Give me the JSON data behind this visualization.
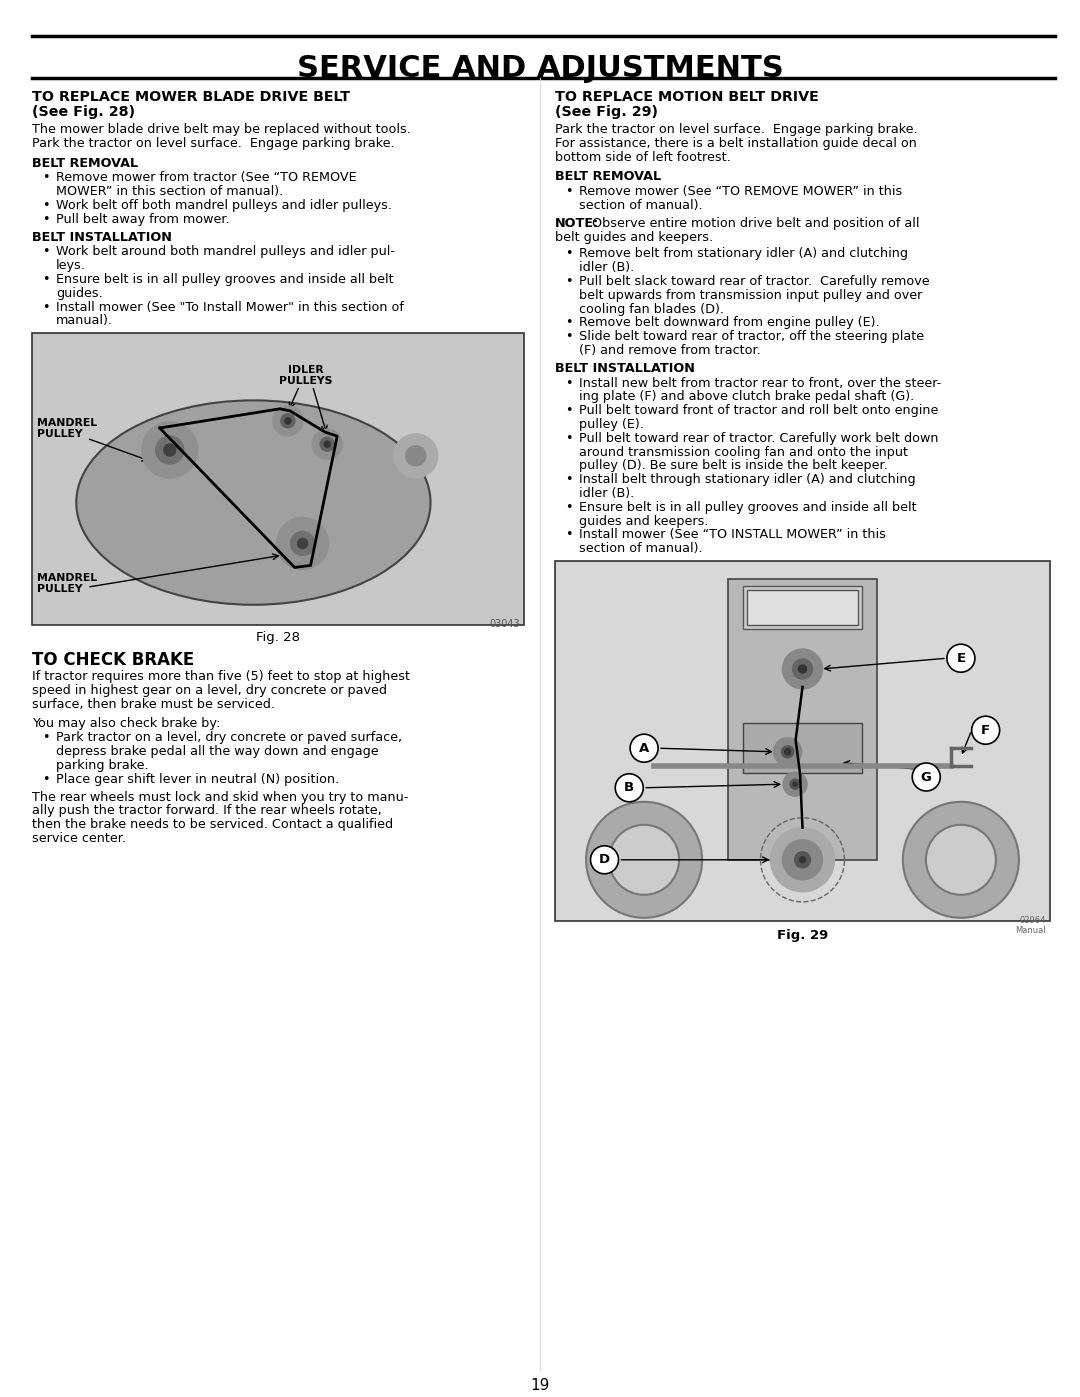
{
  "title": "SERVICE AND ADJUSTMENTS",
  "page_number": "19",
  "left_col": {
    "s1_title1": "TO REPLACE MOWER BLADE DRIVE BELT",
    "s1_title2": "(See Fig. 28)",
    "s1_intro": [
      "The mower blade drive belt may be replaced without tools.",
      "Park the tractor on level surface.  Engage parking brake."
    ],
    "s1_br_hdr": "BELT REMOVAL",
    "s1_br": [
      [
        "Remove mower from tractor (See “TO REMOVE",
        "MOWER” in this section of manual)."
      ],
      [
        "Work belt off both mandrel pulleys and idler pulleys."
      ],
      [
        "Pull belt away from mower."
      ]
    ],
    "s1_bi_hdr": "BELT INSTALLATION",
    "s1_bi": [
      [
        "Work belt around both mandrel pulleys and idler pul-",
        "leys."
      ],
      [
        "Ensure belt is in all pulley grooves and inside all belt",
        "guides."
      ],
      [
        "Install mower (See \"To Install Mower\" in this section of",
        "manual)."
      ]
    ],
    "fig28_caption": "Fig. 28",
    "fig28_code": "03043",
    "s3_title": "TO CHECK BRAKE",
    "s3_p1": [
      "If tractor requires more than five (5) feet to stop at highest",
      "speed in highest gear on a level, dry concrete or paved",
      "surface, then brake must be serviced."
    ],
    "s3_p2": "You may also check brake by:",
    "s3_bullets": [
      [
        "Park tractor on a level, dry concrete or paved surface,",
        "depress brake pedal all the way down and engage",
        "parking brake."
      ],
      [
        "Place gear shift lever in neutral (N) position."
      ]
    ],
    "s3_p3": [
      "The rear wheels must lock and skid when you try to manu-",
      "ally push the tractor forward. If the rear wheels rotate,",
      "then the brake needs to be serviced. Contact a qualified",
      "service center."
    ]
  },
  "right_col": {
    "s2_title1": "TO REPLACE MOTION BELT DRIVE",
    "s2_title2": "(See Fig. 29)",
    "s2_intro": [
      "Park the tractor on level surface.  Engage parking brake.",
      "For assistance, there is a belt installation guide decal on",
      "bottom side of left footrest."
    ],
    "s2_br_hdr": "BELT REMOVAL",
    "s2_br1": [
      [
        "Remove mower (See “TO REMOVE MOWER” in this",
        "section of manual)."
      ]
    ],
    "s2_note_bold": "NOTE:",
    "s2_note_rest": " Observe entire motion drive belt and position of all belt guides and keepers.",
    "s2_note_line2": "belt guides and keepers.",
    "s2_br2": [
      [
        "Remove belt from stationary idler (A) and clutching",
        "idler (B)."
      ],
      [
        "Pull belt slack toward rear of tractor.  Carefully remove",
        "belt upwards from transmission input pulley and over",
        "cooling fan blades (D)."
      ],
      [
        "Remove belt downward from engine pulley (E)."
      ],
      [
        "Slide belt toward rear of tractor, off the steering plate",
        "(F) and remove from tractor."
      ]
    ],
    "s2_bi_hdr": "BELT INSTALLATION",
    "s2_bi": [
      [
        "Install new belt from tractor rear to front, over the steer-",
        "ing plate (F) and above clutch brake pedal shaft (G)."
      ],
      [
        "Pull belt toward front of tractor and roll belt onto engine",
        "pulley (E)."
      ],
      [
        "Pull belt toward rear of tractor. Carefully work belt down",
        "around transmission cooling fan and onto the input",
        "pulley (D). Be sure belt is inside the belt keeper."
      ],
      [
        "Install belt through stationary idler (A) and clutching",
        "idler (B)."
      ],
      [
        "Ensure belt is in all pulley grooves and inside all belt",
        "guides and keepers."
      ],
      [
        "Install mower (See “TO INSTALL MOWER” in this",
        "section of manual)."
      ]
    ],
    "fig29_caption": "Fig. 29",
    "fig29_code": "02964\nManual"
  }
}
